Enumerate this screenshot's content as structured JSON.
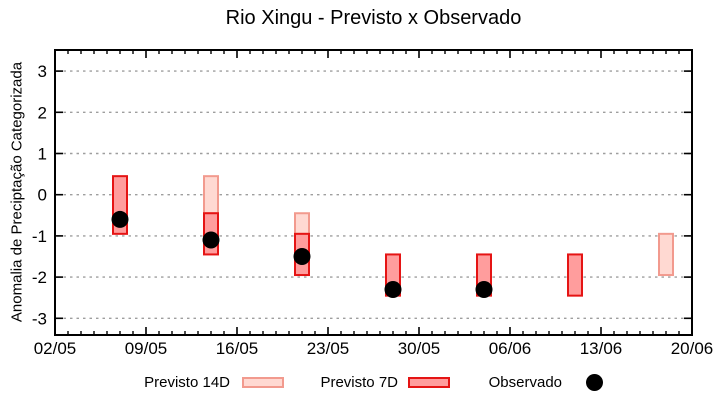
{
  "chart": {
    "title": "Rio Xingu - Previsto x Observado",
    "y_axis_label": "Anomalia de Preciptação Categorizada",
    "legend": {
      "previsto_14d": "Previsto 14D",
      "previsto_7d": "Previsto 7D",
      "observado": "Observado"
    }
  },
  "chart_data": {
    "type": "bar",
    "subtype": "floating-range-bars-with-scatter",
    "title": "Rio Xingu - Previsto x Observado",
    "xlabel": "",
    "ylabel": "Anomalia de Preciptação Categorizada",
    "x_tick_labels": [
      "02/05",
      "09/05",
      "16/05",
      "23/05",
      "30/05",
      "06/06",
      "13/06",
      "20/06"
    ],
    "x_tick_days": [
      0,
      7,
      14,
      21,
      28,
      35,
      42,
      49
    ],
    "x_minor_tick_interval_days": 1,
    "y_ticks": [
      3,
      2,
      1,
      0,
      -1,
      -2,
      -3
    ],
    "ylim": [
      -3.45,
      3.52
    ],
    "xlim": [
      "02/05",
      "20/06"
    ],
    "grid": "horizontal-dotted",
    "legend_position": "bottom-outside",
    "series": [
      {
        "name": "Previsto 14D",
        "type": "range_bar",
        "fill": "#ffd9d2",
        "border": "#f29a8e",
        "points": [
          {
            "date": "14/05",
            "day": 12,
            "high": 0.45,
            "low": -0.45
          },
          {
            "date": "21/05",
            "day": 19,
            "high": -0.45,
            "low": -0.95
          },
          {
            "date": "18/06",
            "day": 47,
            "high": -0.95,
            "low": -1.95
          }
        ]
      },
      {
        "name": "Previsto 7D",
        "type": "range_bar",
        "fill": "#ff9d9d",
        "border": "#e51414",
        "points": [
          {
            "date": "07/05",
            "day": 5,
            "high": 0.45,
            "low": -0.95
          },
          {
            "date": "14/05",
            "day": 12,
            "high": -0.45,
            "low": -1.45
          },
          {
            "date": "21/05",
            "day": 19,
            "high": -0.95,
            "low": -1.95
          },
          {
            "date": "28/05",
            "day": 26,
            "high": -1.45,
            "low": -2.45
          },
          {
            "date": "04/06",
            "day": 33,
            "high": -1.45,
            "low": -2.45
          },
          {
            "date": "11/06",
            "day": 40,
            "high": -1.45,
            "low": -2.45
          }
        ]
      },
      {
        "name": "Observado",
        "type": "scatter",
        "color": "#000000",
        "points": [
          {
            "date": "07/05",
            "day": 5,
            "value": -0.6
          },
          {
            "date": "14/05",
            "day": 12,
            "value": -1.1
          },
          {
            "date": "21/05",
            "day": 19,
            "value": -1.5
          },
          {
            "date": "28/05",
            "day": 26,
            "value": -2.3
          },
          {
            "date": "04/06",
            "day": 33,
            "value": -2.3
          }
        ]
      }
    ],
    "colors": {
      "background": "#ffffff",
      "axis": "#000000",
      "grid": "#9e9e9e",
      "observed_dot": "#000000"
    }
  }
}
